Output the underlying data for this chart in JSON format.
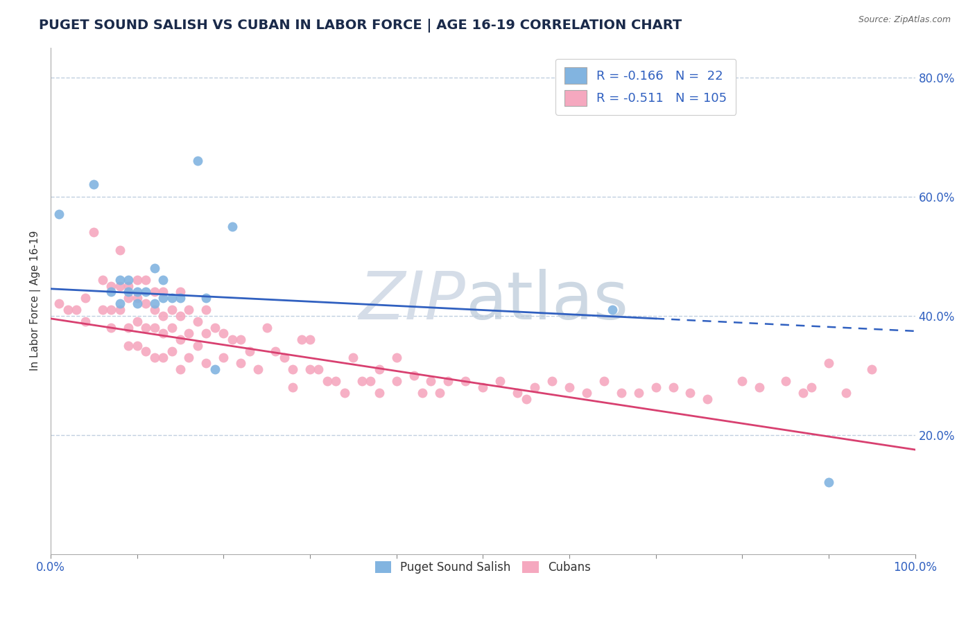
{
  "title": "PUGET SOUND SALISH VS CUBAN IN LABOR FORCE | AGE 16-19 CORRELATION CHART",
  "source": "Source: ZipAtlas.com",
  "ylabel": "In Labor Force | Age 16-19",
  "xlim": [
    0.0,
    1.0
  ],
  "ylim": [
    0.0,
    0.85
  ],
  "y_ticks_right": [
    0.2,
    0.4,
    0.6,
    0.8
  ],
  "y_tick_labels_right": [
    "20.0%",
    "40.0%",
    "60.0%",
    "80.0%"
  ],
  "blue_R": "-0.166",
  "blue_N": "22",
  "pink_R": "-0.511",
  "pink_N": "105",
  "blue_color": "#82b4e0",
  "pink_color": "#f5a8bf",
  "line_blue": "#3060c0",
  "line_pink": "#d84070",
  "bg_color": "#ffffff",
  "grid_color": "#c0cfe0",
  "blue_line_start_x": 0.0,
  "blue_line_start_y": 0.445,
  "blue_line_end_x": 0.7,
  "blue_line_end_y": 0.395,
  "blue_line_dash_end_x": 1.0,
  "blue_line_dash_end_y": 0.374,
  "pink_line_start_x": 0.0,
  "pink_line_start_y": 0.395,
  "pink_line_end_x": 1.0,
  "pink_line_end_y": 0.175,
  "blue_scatter_x": [
    0.01,
    0.05,
    0.07,
    0.08,
    0.08,
    0.09,
    0.09,
    0.1,
    0.1,
    0.11,
    0.12,
    0.12,
    0.13,
    0.13,
    0.14,
    0.15,
    0.17,
    0.18,
    0.19,
    0.21,
    0.65,
    0.9
  ],
  "blue_scatter_y": [
    0.57,
    0.62,
    0.44,
    0.46,
    0.42,
    0.44,
    0.46,
    0.42,
    0.44,
    0.44,
    0.48,
    0.42,
    0.43,
    0.46,
    0.43,
    0.43,
    0.66,
    0.43,
    0.31,
    0.55,
    0.41,
    0.12
  ],
  "pink_scatter_x": [
    0.01,
    0.02,
    0.03,
    0.04,
    0.04,
    0.05,
    0.06,
    0.06,
    0.07,
    0.07,
    0.07,
    0.08,
    0.08,
    0.08,
    0.09,
    0.09,
    0.09,
    0.09,
    0.1,
    0.1,
    0.1,
    0.1,
    0.11,
    0.11,
    0.11,
    0.11,
    0.12,
    0.12,
    0.12,
    0.12,
    0.13,
    0.13,
    0.13,
    0.13,
    0.14,
    0.14,
    0.14,
    0.15,
    0.15,
    0.15,
    0.15,
    0.16,
    0.16,
    0.16,
    0.17,
    0.17,
    0.18,
    0.18,
    0.18,
    0.19,
    0.2,
    0.2,
    0.21,
    0.22,
    0.22,
    0.23,
    0.24,
    0.25,
    0.26,
    0.27,
    0.28,
    0.28,
    0.29,
    0.3,
    0.3,
    0.31,
    0.32,
    0.33,
    0.34,
    0.35,
    0.36,
    0.37,
    0.38,
    0.38,
    0.4,
    0.4,
    0.42,
    0.43,
    0.44,
    0.45,
    0.46,
    0.48,
    0.5,
    0.52,
    0.54,
    0.55,
    0.56,
    0.58,
    0.6,
    0.62,
    0.64,
    0.66,
    0.68,
    0.7,
    0.72,
    0.74,
    0.76,
    0.8,
    0.82,
    0.85,
    0.87,
    0.88,
    0.9,
    0.92,
    0.95
  ],
  "pink_scatter_y": [
    0.42,
    0.41,
    0.41,
    0.43,
    0.39,
    0.54,
    0.46,
    0.41,
    0.45,
    0.41,
    0.38,
    0.51,
    0.45,
    0.41,
    0.45,
    0.43,
    0.38,
    0.35,
    0.46,
    0.43,
    0.39,
    0.35,
    0.46,
    0.42,
    0.38,
    0.34,
    0.44,
    0.41,
    0.38,
    0.33,
    0.44,
    0.4,
    0.37,
    0.33,
    0.41,
    0.38,
    0.34,
    0.44,
    0.4,
    0.36,
    0.31,
    0.41,
    0.37,
    0.33,
    0.39,
    0.35,
    0.41,
    0.37,
    0.32,
    0.38,
    0.37,
    0.33,
    0.36,
    0.36,
    0.32,
    0.34,
    0.31,
    0.38,
    0.34,
    0.33,
    0.31,
    0.28,
    0.36,
    0.36,
    0.31,
    0.31,
    0.29,
    0.29,
    0.27,
    0.33,
    0.29,
    0.29,
    0.27,
    0.31,
    0.33,
    0.29,
    0.3,
    0.27,
    0.29,
    0.27,
    0.29,
    0.29,
    0.28,
    0.29,
    0.27,
    0.26,
    0.28,
    0.29,
    0.28,
    0.27,
    0.29,
    0.27,
    0.27,
    0.28,
    0.28,
    0.27,
    0.26,
    0.29,
    0.28,
    0.29,
    0.27,
    0.28,
    0.32,
    0.27,
    0.31
  ]
}
